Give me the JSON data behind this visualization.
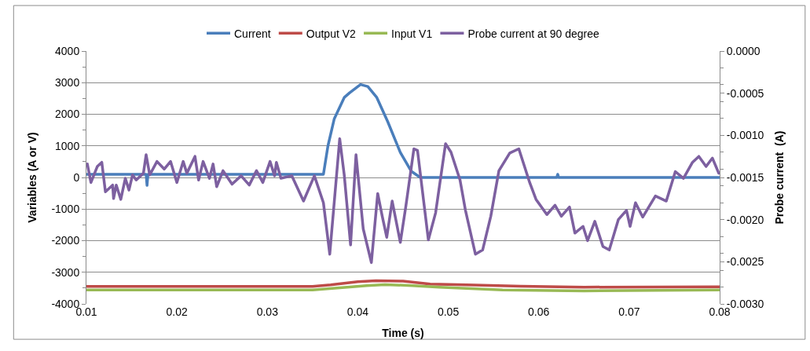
{
  "chart_data": {
    "type": "line",
    "xlabel": "Time (s)",
    "ylabel": "Variables (A or V)",
    "y2label": "Probe current  (A)",
    "xlim": [
      0.01,
      0.08
    ],
    "xticks": [
      0.01,
      0.02,
      0.03,
      0.04,
      0.05,
      0.06,
      0.07,
      0.08
    ],
    "ylim": [
      -4000,
      4000
    ],
    "yticks": [
      -4000,
      -3000,
      -2000,
      -1000,
      0,
      1000,
      2000,
      3000,
      4000
    ],
    "y2lim": [
      -0.003,
      0.0
    ],
    "y2ticks": [
      {
        "value": -0.003,
        "label": "-0.0030"
      },
      {
        "value": -0.0025,
        "label": "-0.0025"
      },
      {
        "value": -0.002,
        "label": "-0.0020"
      },
      {
        "value": -0.0015,
        "label": "-0.0015"
      },
      {
        "value": -0.001,
        "label": "-0.0010"
      },
      {
        "value": -0.0005,
        "label": "-0.0005"
      },
      {
        "value": 0.0,
        "label": "0.0000"
      }
    ],
    "grid": "y",
    "legend": "top",
    "marker": "none",
    "line_style": "solid",
    "series": [
      {
        "name": "Current",
        "color": "#4a7ebb",
        "x": [
          0.01,
          0.0166,
          0.0167,
          0.0168,
          0.0362,
          0.0367,
          0.0374,
          0.0385,
          0.0391,
          0.0403,
          0.0411,
          0.0421,
          0.0433,
          0.0447,
          0.0459,
          0.0469,
          0.062,
          0.0621,
          0.0622,
          0.08
        ],
        "values": [
          100,
          100,
          -250,
          100,
          100,
          1000,
          1860,
          2530,
          2680,
          2940,
          2880,
          2530,
          1770,
          790,
          200,
          0,
          0,
          100,
          0,
          0
        ]
      },
      {
        "name": "Output V2",
        "color": "#be4b48",
        "x": [
          0.01,
          0.035,
          0.037,
          0.04,
          0.042,
          0.045,
          0.048,
          0.052,
          0.058,
          0.065,
          0.08
        ],
        "values": [
          -3450,
          -3450,
          -3400,
          -3300,
          -3270,
          -3280,
          -3370,
          -3400,
          -3440,
          -3470,
          -3460
        ]
      },
      {
        "name": "Input V1",
        "color": "#98b954",
        "x": [
          0.01,
          0.035,
          0.038,
          0.041,
          0.043,
          0.046,
          0.049,
          0.053,
          0.056,
          0.065,
          0.08
        ],
        "values": [
          -3560,
          -3560,
          -3490,
          -3420,
          -3390,
          -3420,
          -3470,
          -3520,
          -3560,
          -3590,
          -3560
        ]
      },
      {
        "name": "Probe current at 90 degree",
        "color": "#7d60a0",
        "axis": "y2",
        "x": [
          0.0101,
          0.0105,
          0.0112,
          0.0117,
          0.0121,
          0.0129,
          0.013,
          0.0133,
          0.0138,
          0.0143,
          0.0147,
          0.0151,
          0.0155,
          0.0163,
          0.0166,
          0.017,
          0.0178,
          0.0186,
          0.0193,
          0.02,
          0.0207,
          0.0211,
          0.022,
          0.0224,
          0.0229,
          0.0236,
          0.024,
          0.0244,
          0.0251,
          0.0261,
          0.0271,
          0.028,
          0.0288,
          0.0295,
          0.0303,
          0.0308,
          0.031,
          0.0315,
          0.0327,
          0.034,
          0.0352,
          0.0362,
          0.0369,
          0.038,
          0.0385,
          0.0392,
          0.0398,
          0.0406,
          0.0415,
          0.0422,
          0.0427,
          0.0432,
          0.0438,
          0.0447,
          0.0453,
          0.0462,
          0.0466,
          0.0478,
          0.0486,
          0.0497,
          0.0503,
          0.0513,
          0.0519,
          0.053,
          0.0538,
          0.0547,
          0.0556,
          0.0568,
          0.0578,
          0.059,
          0.0597,
          0.0609,
          0.0618,
          0.0625,
          0.0634,
          0.064,
          0.0649,
          0.0654,
          0.0662,
          0.0671,
          0.0678,
          0.0688,
          0.0697,
          0.0701,
          0.0707,
          0.0715,
          0.0729,
          0.0741,
          0.0751,
          0.076,
          0.077,
          0.0777,
          0.0785,
          0.0792,
          0.0799
        ],
        "values": [
          -0.00134,
          -0.00156,
          -0.00137,
          -0.00132,
          -0.00167,
          -0.00159,
          -0.00175,
          -0.00159,
          -0.00176,
          -0.00151,
          -0.00165,
          -0.00147,
          -0.00153,
          -0.00145,
          -0.00123,
          -0.00147,
          -0.00131,
          -0.0014,
          -0.00131,
          -0.00156,
          -0.00131,
          -0.00145,
          -0.00125,
          -0.00153,
          -0.00131,
          -0.00151,
          -0.00134,
          -0.00161,
          -0.00142,
          -0.00158,
          -0.00148,
          -0.00159,
          -0.00142,
          -0.00156,
          -0.00131,
          -0.00148,
          -0.00132,
          -0.00151,
          -0.00148,
          -0.00178,
          -0.00148,
          -0.0018,
          -0.00241,
          -0.00104,
          -0.00147,
          -0.0023,
          -0.00123,
          -0.00211,
          -0.00251,
          -0.00169,
          -0.00196,
          -0.00221,
          -0.00178,
          -0.00227,
          -0.00185,
          -0.00116,
          -0.00118,
          -0.00224,
          -0.00192,
          -0.0011,
          -0.0012,
          -0.00153,
          -0.00189,
          -0.00241,
          -0.00236,
          -0.00196,
          -0.00142,
          -0.00121,
          -0.00116,
          -0.00156,
          -0.00176,
          -0.00194,
          -0.00183,
          -0.00196,
          -0.00185,
          -0.00216,
          -0.00208,
          -0.00225,
          -0.00202,
          -0.00232,
          -0.00236,
          -0.002,
          -0.00189,
          -0.00208,
          -0.0018,
          -0.00197,
          -0.00172,
          -0.00178,
          -0.00143,
          -0.00151,
          -0.00132,
          -0.00125,
          -0.00137,
          -0.00127,
          -0.00145
        ]
      }
    ]
  }
}
